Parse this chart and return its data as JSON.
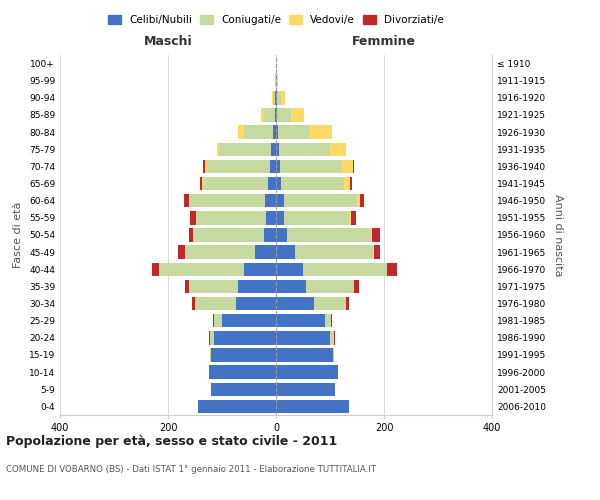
{
  "age_groups": [
    "0-4",
    "5-9",
    "10-14",
    "15-19",
    "20-24",
    "25-29",
    "30-34",
    "35-39",
    "40-44",
    "45-49",
    "50-54",
    "55-59",
    "60-64",
    "65-69",
    "70-74",
    "75-79",
    "80-84",
    "85-89",
    "90-94",
    "95-99",
    "100+"
  ],
  "birth_years": [
    "2006-2010",
    "2001-2005",
    "1996-2000",
    "1991-1995",
    "1986-1990",
    "1981-1985",
    "1976-1980",
    "1971-1975",
    "1966-1970",
    "1961-1965",
    "1956-1960",
    "1951-1955",
    "1946-1950",
    "1941-1945",
    "1936-1940",
    "1931-1935",
    "1926-1930",
    "1921-1925",
    "1916-1920",
    "1911-1915",
    "≤ 1910"
  ],
  "maschi": {
    "celibi": [
      145,
      120,
      125,
      120,
      115,
      100,
      75,
      70,
      60,
      38,
      22,
      18,
      20,
      14,
      12,
      10,
      5,
      2,
      1,
      0,
      0
    ],
    "coniugati": [
      0,
      0,
      0,
      2,
      8,
      15,
      75,
      90,
      155,
      130,
      130,
      130,
      140,
      120,
      115,
      95,
      55,
      20,
      4,
      1,
      0
    ],
    "vedovi": [
      0,
      0,
      0,
      0,
      0,
      0,
      0,
      1,
      1,
      1,
      1,
      1,
      2,
      3,
      5,
      5,
      10,
      5,
      2,
      0,
      0
    ],
    "divorziati": [
      0,
      0,
      0,
      0,
      2,
      2,
      5,
      8,
      14,
      12,
      8,
      10,
      8,
      4,
      3,
      0,
      0,
      0,
      0,
      0,
      0
    ]
  },
  "femmine": {
    "nubili": [
      135,
      110,
      115,
      105,
      100,
      90,
      70,
      55,
      50,
      35,
      20,
      15,
      15,
      10,
      8,
      5,
      3,
      2,
      1,
      0,
      0
    ],
    "coniugate": [
      0,
      0,
      0,
      2,
      8,
      12,
      60,
      90,
      155,
      145,
      155,
      120,
      135,
      115,
      115,
      95,
      60,
      25,
      8,
      2,
      0
    ],
    "vedove": [
      0,
      0,
      0,
      0,
      0,
      0,
      0,
      0,
      1,
      1,
      2,
      3,
      5,
      12,
      20,
      30,
      40,
      25,
      8,
      2,
      0
    ],
    "divorziate": [
      0,
      0,
      0,
      0,
      1,
      2,
      5,
      8,
      18,
      12,
      15,
      10,
      8,
      4,
      2,
      0,
      0,
      0,
      0,
      0,
      0
    ]
  },
  "colors": {
    "celibi": "#4472c4",
    "coniugati": "#c5d9a0",
    "vedovi": "#ffd966",
    "divorziati": "#c0282c"
  },
  "title": "Popolazione per età, sesso e stato civile - 2011",
  "subtitle": "COMUNE DI VOBARNO (BS) - Dati ISTAT 1° gennaio 2011 - Elaborazione TUTTITALIA.IT",
  "xlabel_left": "Maschi",
  "xlabel_right": "Femmine",
  "ylabel_left": "Fasce di età",
  "ylabel_right": "Anni di nascita",
  "xlim": 400,
  "background_color": "#ffffff",
  "grid_color": "#cccccc",
  "legend_labels": [
    "Celibi/Nubili",
    "Coniugati/e",
    "Vedovi/e",
    "Divorziati/e"
  ]
}
